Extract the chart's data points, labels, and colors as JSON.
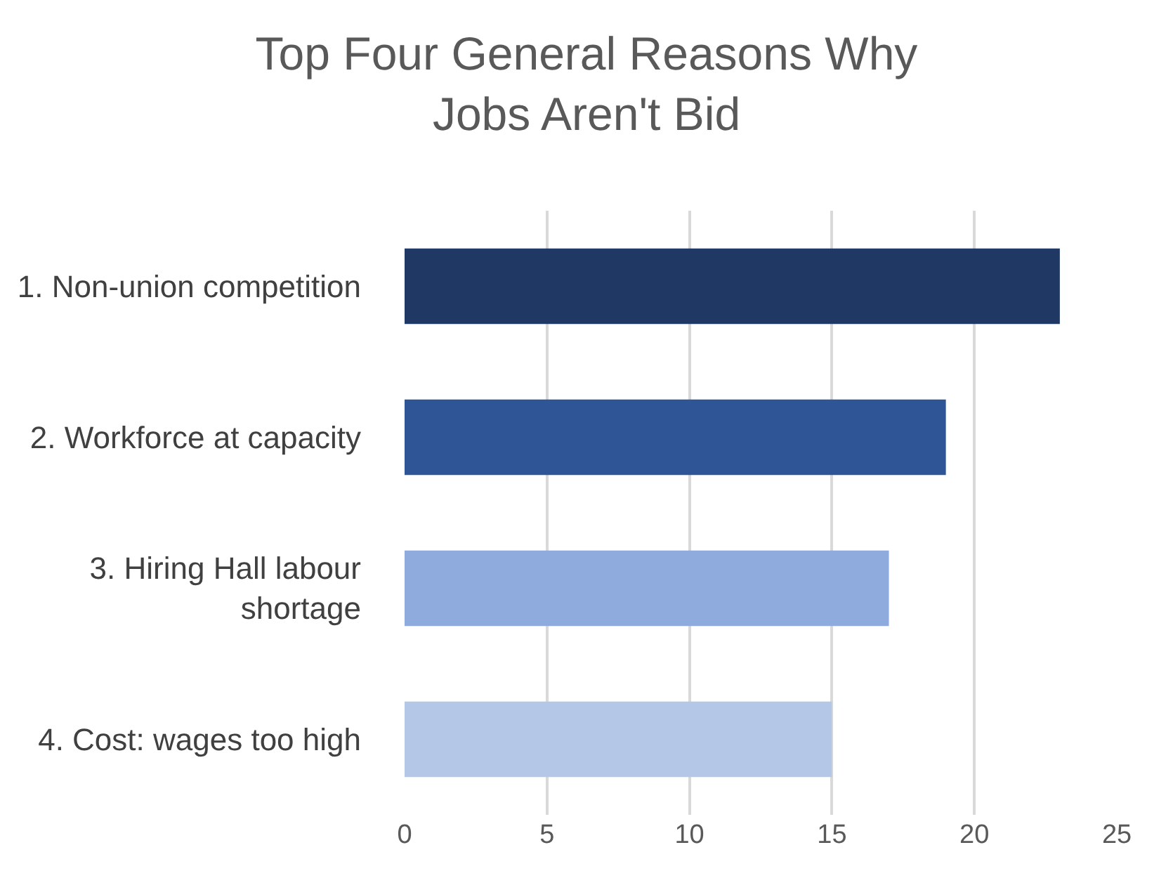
{
  "chart_data": {
    "type": "bar",
    "orientation": "horizontal",
    "title": "Top Four General Reasons Why Jobs Aren't Bid",
    "categories": [
      "1. Non-union competition",
      "2. Workforce at capacity",
      "3. Hiring Hall labour shortage",
      "4. Cost: wages too high"
    ],
    "values": [
      23,
      19,
      17,
      15
    ],
    "colors": [
      "#203864",
      "#2f5597",
      "#8faadc",
      "#b4c7e7"
    ],
    "xlim": [
      0,
      25
    ],
    "xticks": [
      0,
      5,
      10,
      15,
      20,
      25
    ],
    "grid": "x"
  }
}
